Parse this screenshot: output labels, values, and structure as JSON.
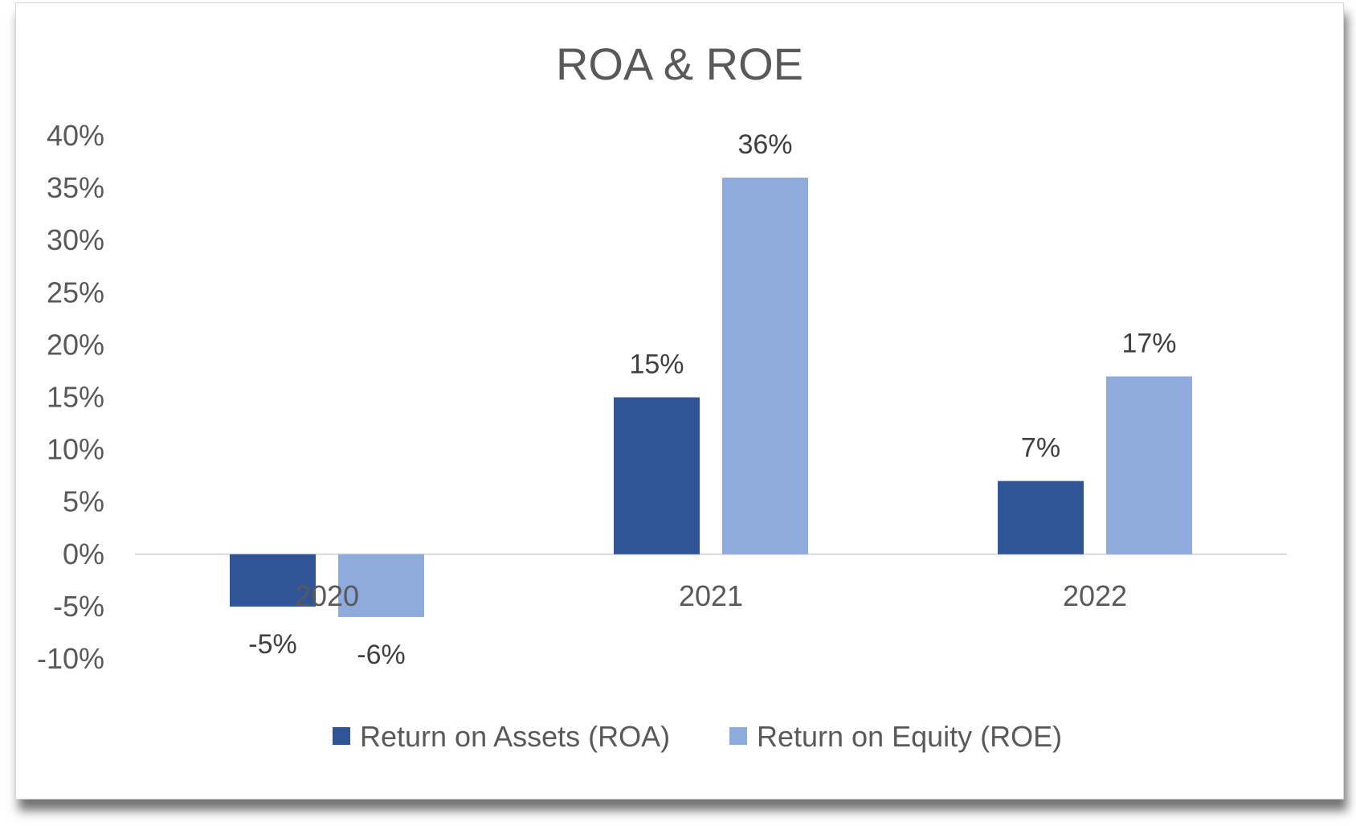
{
  "chart_data": {
    "type": "bar",
    "title": "ROA & ROE",
    "categories": [
      "2020",
      "2021",
      "2022"
    ],
    "series": [
      {
        "name": "Return on Assets (ROA)",
        "values": [
          -0.05,
          0.15,
          0.07
        ],
        "labels": [
          "-5%",
          "15%",
          "7%"
        ],
        "color": "#2F5597"
      },
      {
        "name": "Return on Equity (ROE)",
        "values": [
          -0.06,
          0.36,
          0.17
        ],
        "labels": [
          "-6%",
          "36%",
          "17%"
        ],
        "color": "#8FAADC"
      }
    ],
    "ylim": [
      -0.1,
      0.4
    ],
    "yticks": [
      0.4,
      0.35,
      0.3,
      0.25,
      0.2,
      0.15,
      0.1,
      0.05,
      0.0,
      -0.05,
      -0.1
    ],
    "ytick_labels": [
      "40%",
      "35%",
      "30%",
      "25%",
      "20%",
      "15%",
      "10%",
      "5%",
      "0%",
      "-5%",
      "-10%"
    ],
    "xlabel": "",
    "ylabel": "",
    "grid": false,
    "legend_position": "bottom"
  }
}
